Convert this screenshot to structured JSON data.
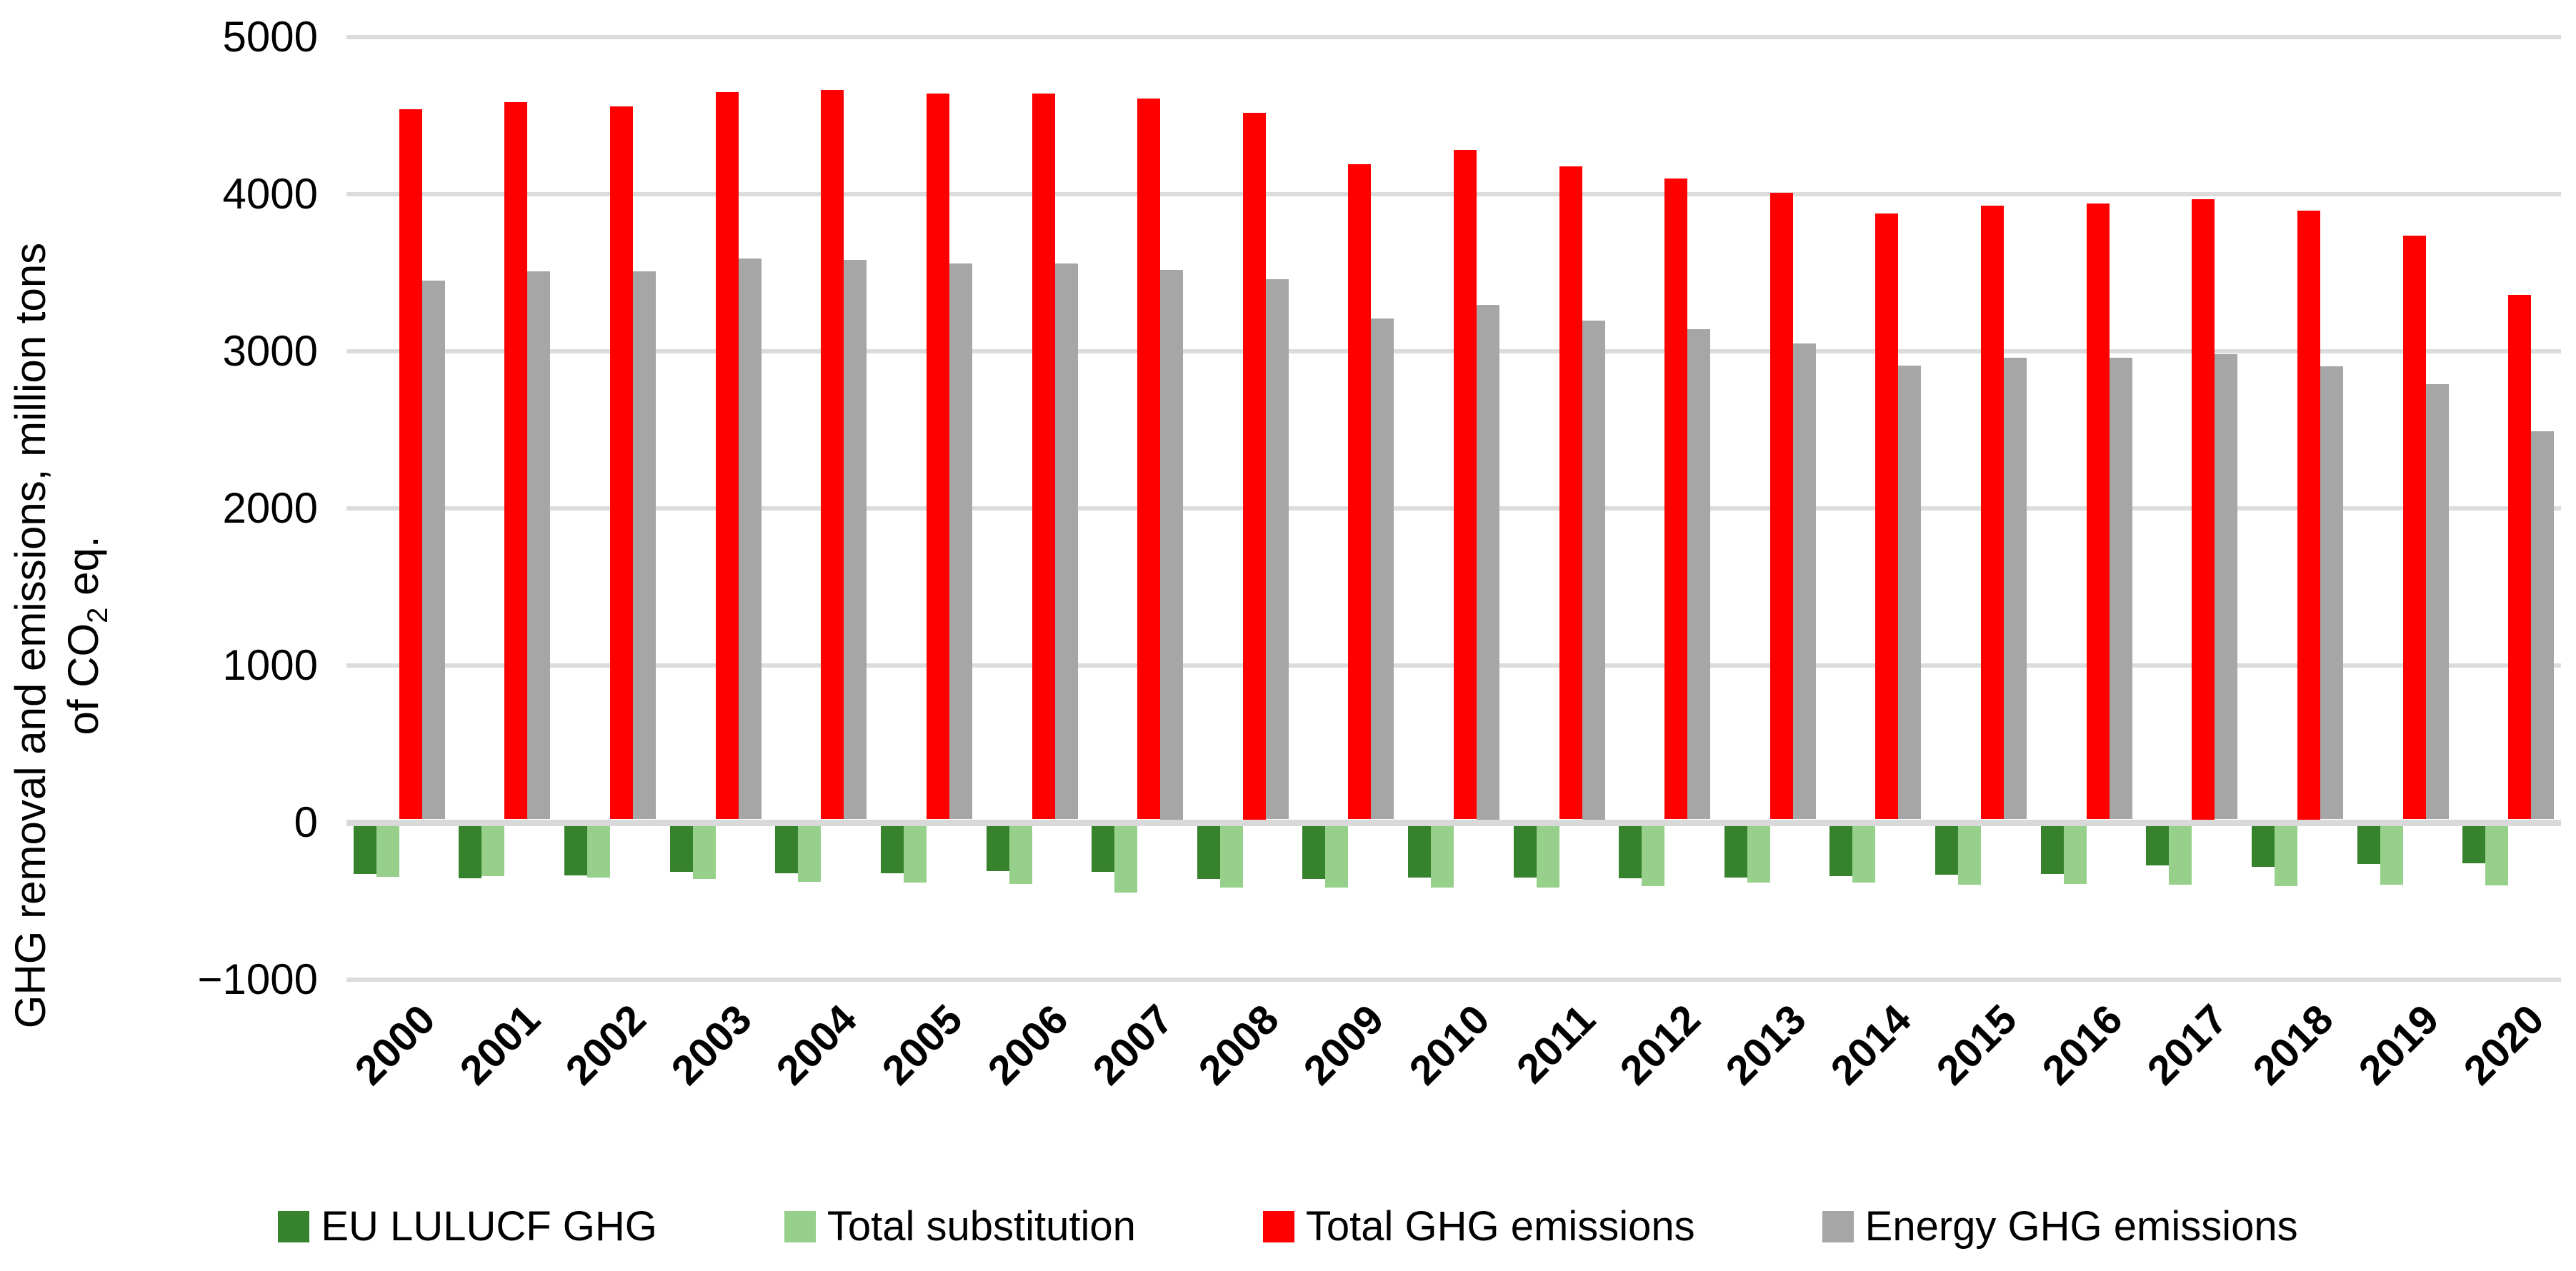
{
  "chart_data": {
    "type": "bar",
    "title": "",
    "ylabel_line1": "GHG removal and emissions, million tons",
    "ylabel_line2_pre": "of CO",
    "ylabel_line2_sub": "2",
    "ylabel_line2_post": " eq.",
    "categories": [
      "2000",
      "2001",
      "2002",
      "2003",
      "2004",
      "2005",
      "2006",
      "2007",
      "2008",
      "2009",
      "2010",
      "2011",
      "2012",
      "2013",
      "2014",
      "2015",
      "2016",
      "2017",
      "2018",
      "2019",
      "2020"
    ],
    "series": [
      {
        "name": "EU LULUCF GHG",
        "color": "#37822D",
        "values": [
          -305,
          -335,
          -315,
          -295,
          -300,
          -300,
          -290,
          -295,
          -340,
          -340,
          -330,
          -330,
          -335,
          -330,
          -320,
          -310,
          -305,
          -250,
          -260,
          -245,
          -240
        ]
      },
      {
        "name": "Total substitution",
        "color": "#96D08B",
        "values": [
          -325,
          -320,
          -330,
          -340,
          -355,
          -360,
          -370,
          -425,
          -395,
          -395,
          -395,
          -395,
          -385,
          -360,
          -360,
          -375,
          -370,
          -375,
          -385,
          -375,
          -380
        ]
      },
      {
        "name": "Total GHG emissions",
        "color": "#FF0000",
        "values": [
          4520,
          4565,
          4540,
          4630,
          4645,
          4620,
          4620,
          4590,
          4500,
          4170,
          4260,
          4155,
          4080,
          3990,
          3855,
          3905,
          3920,
          3950,
          3875,
          3715,
          3340
        ]
      },
      {
        "name": "Energy GHG emissions",
        "color": "#A6A6A6",
        "values": [
          3430,
          3490,
          3490,
          3570,
          3560,
          3540,
          3540,
          3500,
          3440,
          3190,
          3275,
          3175,
          3120,
          3030,
          2890,
          2940,
          2940,
          2960,
          2885,
          2770,
          2470
        ]
      }
    ],
    "ylim": [
      -1000,
      5000
    ],
    "yticks": [
      5000,
      4000,
      3000,
      2000,
      1000,
      0,
      -1000
    ],
    "ytick_labels": [
      "5000",
      "4000",
      "3000",
      "2000",
      "1000",
      "0",
      "−1000"
    ],
    "xlabel": "",
    "grid": true,
    "legend_position": "bottom",
    "colors": {
      "gridline": "#DCDCDC",
      "zero_axis": "#D9D9D9",
      "background": "#FFFFFF",
      "text": "#000000"
    }
  }
}
